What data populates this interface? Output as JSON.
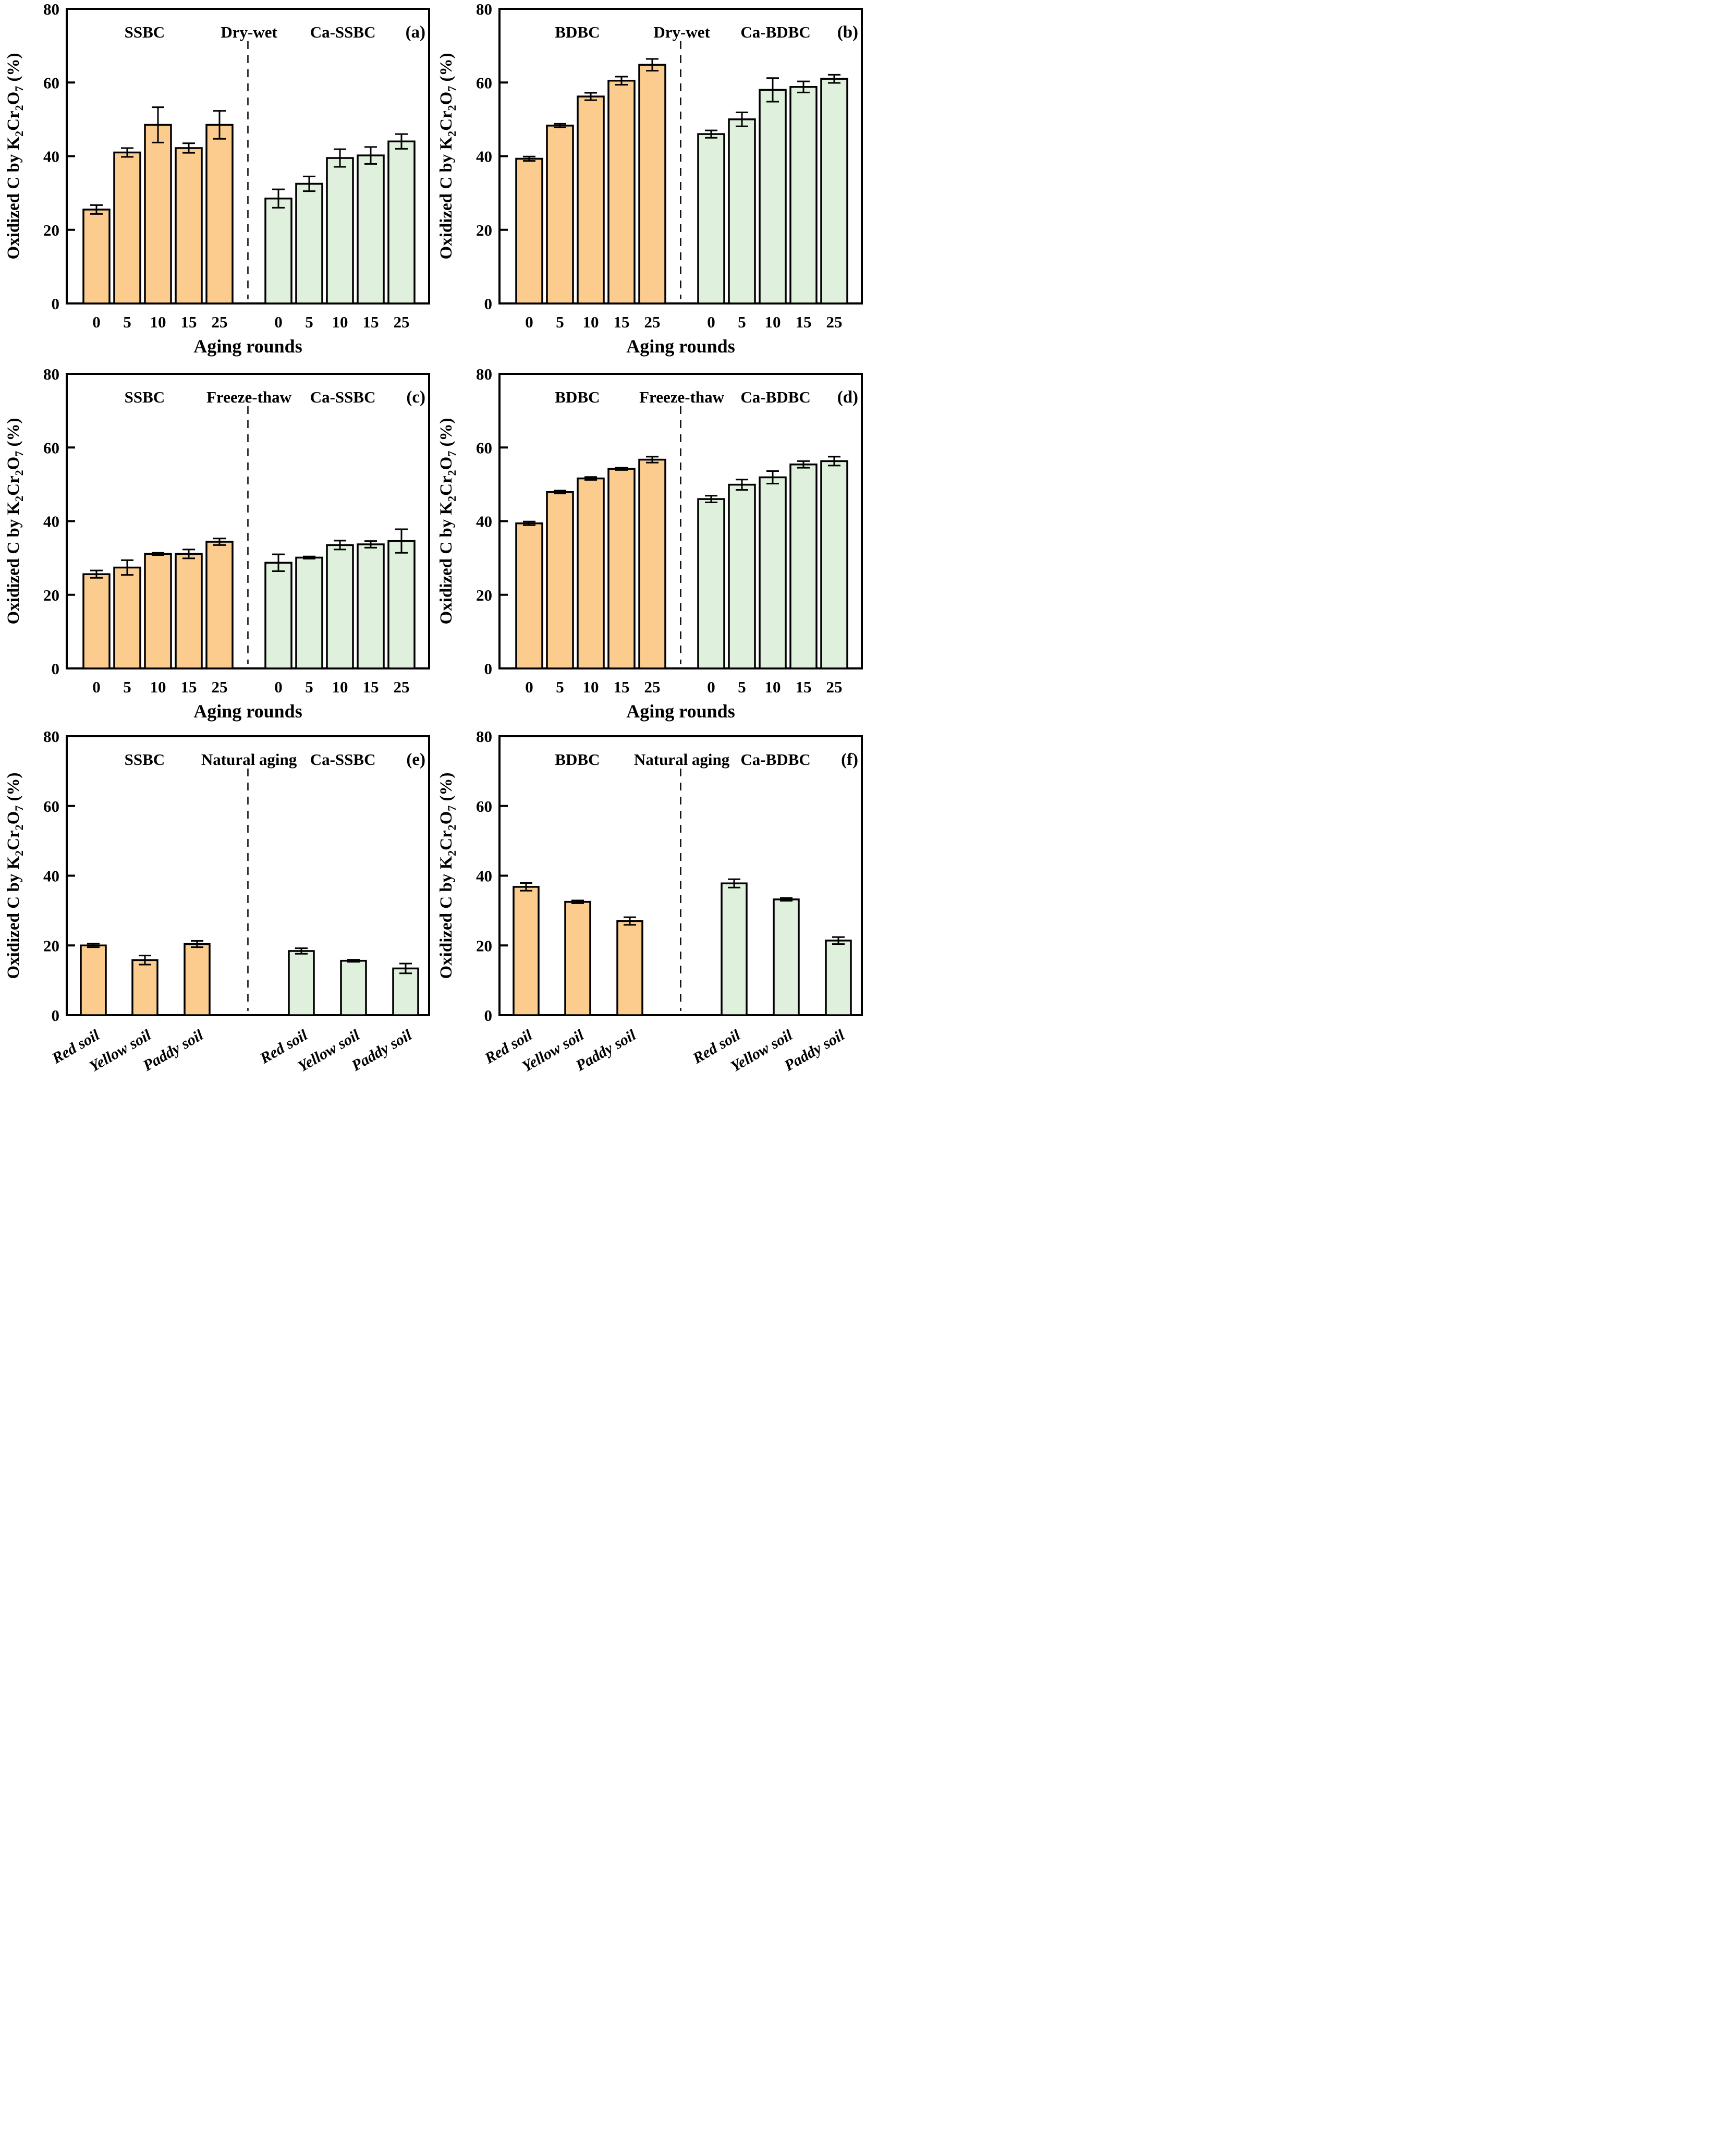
{
  "figure": {
    "background": "#ffffff",
    "description_labels": {
      "biochar_left_column": "SSBC",
      "biochar_right_column": "BDBC",
      "modified_prefix": "Ca-"
    }
  },
  "colors": {
    "orange": "#FBCC8E",
    "green": "#DFF1DC",
    "stroke": "#000000"
  },
  "axis_shared": {
    "ylabel_text": "Oxidized C by K₂Cr₂O₇ (%)",
    "ylabel_parts": [
      {
        "t": "Oxidized C by K"
      },
      {
        "t": "2",
        "sub": true
      },
      {
        "t": "Cr"
      },
      {
        "t": "2",
        "sub": true
      },
      {
        "t": "O"
      },
      {
        "t": "7",
        "sub": true
      },
      {
        "t": " (%)"
      }
    ],
    "xlabel_aging": "Aging rounds",
    "ylim": [
      0,
      80
    ],
    "yticks": [
      0,
      20,
      40,
      60,
      80
    ]
  },
  "chart_data": [
    {
      "panel": "(a)",
      "type": "bar",
      "aging_label": "Dry-wet",
      "categories": [
        "0",
        "5",
        "10",
        "15",
        "25"
      ],
      "x_tick_style": "horizontal",
      "xlabel": "Aging rounds",
      "ylabel": "Oxidized C by K₂Cr₂O₇ (%)",
      "ylim": [
        0,
        80
      ],
      "yticks": [
        0,
        20,
        40,
        60,
        80
      ],
      "left_group": {
        "name": "SSBC",
        "color_key": "orange",
        "values": [
          25.5,
          41.0,
          48.5,
          42.2,
          48.5
        ],
        "errors": [
          1.2,
          1.2,
          4.8,
          1.3,
          3.8
        ]
      },
      "right_group": {
        "name": "Ca-SSBC",
        "color_key": "green",
        "values": [
          28.5,
          32.5,
          39.5,
          40.2,
          44.0
        ],
        "errors": [
          2.5,
          2.0,
          2.4,
          2.3,
          2.0
        ]
      }
    },
    {
      "panel": "(b)",
      "type": "bar",
      "aging_label": "Dry-wet",
      "categories": [
        "0",
        "5",
        "10",
        "15",
        "25"
      ],
      "x_tick_style": "horizontal",
      "xlabel": "Aging rounds",
      "ylabel": "Oxidized C by K₂Cr₂O₇ (%)",
      "ylim": [
        0,
        80
      ],
      "yticks": [
        0,
        20,
        40,
        60,
        80
      ],
      "left_group": {
        "name": "BDBC",
        "color_key": "orange",
        "values": [
          39.3,
          48.3,
          56.2,
          60.5,
          64.8
        ],
        "errors": [
          0.6,
          0.5,
          1.0,
          1.1,
          1.6
        ]
      },
      "right_group": {
        "name": "Ca-BDBC",
        "color_key": "green",
        "values": [
          46.0,
          50.0,
          58.0,
          58.8,
          61.0
        ],
        "errors": [
          1.0,
          1.9,
          3.2,
          1.5,
          1.1
        ]
      }
    },
    {
      "panel": "(c)",
      "type": "bar",
      "aging_label": "Freeze-thaw",
      "categories": [
        "0",
        "5",
        "10",
        "15",
        "25"
      ],
      "x_tick_style": "horizontal",
      "xlabel": "Aging rounds",
      "ylabel": "Oxidized C by K₂Cr₂O₇ (%)",
      "ylim": [
        0,
        80
      ],
      "yticks": [
        0,
        20,
        40,
        60,
        80
      ],
      "left_group": {
        "name": "SSBC",
        "color_key": "orange",
        "values": [
          25.6,
          27.4,
          31.1,
          31.1,
          34.4
        ],
        "errors": [
          1.0,
          2.0,
          0.3,
          1.2,
          0.9
        ]
      },
      "right_group": {
        "name": "Ca-SSBC",
        "color_key": "green",
        "values": [
          28.7,
          30.1,
          33.5,
          33.7,
          34.6
        ],
        "errors": [
          2.3,
          0.3,
          1.2,
          0.9,
          3.2
        ]
      }
    },
    {
      "panel": "(d)",
      "type": "bar",
      "aging_label": "Freeze-thaw",
      "categories": [
        "0",
        "5",
        "10",
        "15",
        "25"
      ],
      "x_tick_style": "horizontal",
      "xlabel": "Aging rounds",
      "ylabel": "Oxidized C by K₂Cr₂O₇ (%)",
      "ylim": [
        0,
        80
      ],
      "yticks": [
        0,
        20,
        40,
        60,
        80
      ],
      "left_group": {
        "name": "BDBC",
        "color_key": "orange",
        "values": [
          39.4,
          47.9,
          51.6,
          54.2,
          56.7
        ],
        "errors": [
          0.5,
          0.4,
          0.4,
          0.3,
          0.8
        ]
      },
      "right_group": {
        "name": "Ca-BDBC",
        "color_key": "green",
        "values": [
          46.0,
          49.9,
          51.9,
          55.4,
          56.3
        ],
        "errors": [
          0.9,
          1.4,
          1.7,
          0.9,
          1.2
        ]
      }
    },
    {
      "panel": "(e)",
      "type": "bar",
      "aging_label": "Natural aging",
      "categories": [
        "Red soil",
        "Yellow soil",
        "Paddy soil"
      ],
      "x_tick_style": "rotated",
      "xlabel": "",
      "ylabel": "Oxidized C by K₂Cr₂O₇ (%)",
      "ylim": [
        0,
        80
      ],
      "yticks": [
        0,
        20,
        40,
        60,
        80
      ],
      "left_group": {
        "name": "SSBC",
        "color_key": "orange",
        "values": [
          20.0,
          15.8,
          20.4
        ],
        "errors": [
          0.5,
          1.3,
          0.9
        ]
      },
      "right_group": {
        "name": "Ca-SSBC",
        "color_key": "green",
        "values": [
          18.4,
          15.6,
          13.4
        ],
        "errors": [
          0.8,
          0.3,
          1.4
        ]
      }
    },
    {
      "panel": "(f)",
      "type": "bar",
      "aging_label": "Natural aging",
      "categories": [
        "Red soil",
        "Yellow soil",
        "Paddy soil"
      ],
      "x_tick_style": "rotated",
      "xlabel": "",
      "ylabel": "Oxidized C by K₂Cr₂O₇ (%)",
      "ylim": [
        0,
        80
      ],
      "yticks": [
        0,
        20,
        40,
        60,
        80
      ],
      "left_group": {
        "name": "BDBC",
        "color_key": "orange",
        "values": [
          36.8,
          32.5,
          27.0
        ],
        "errors": [
          1.1,
          0.4,
          1.1
        ]
      },
      "right_group": {
        "name": "Ca-BDBC",
        "color_key": "green",
        "values": [
          37.8,
          33.2,
          21.4
        ],
        "errors": [
          1.2,
          0.4,
          1.0
        ]
      }
    }
  ]
}
